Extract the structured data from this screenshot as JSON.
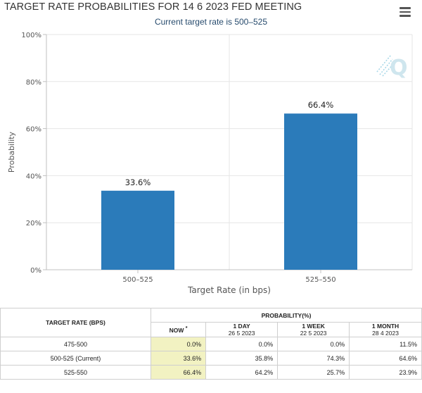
{
  "header": {
    "title": "TARGET RATE PROBABILITIES FOR 14 6 2023 FED MEETING",
    "subtitle": "Current target rate is 500–525"
  },
  "colors": {
    "bar": "#2b7bba",
    "grid": "#e6e6e6",
    "axis": "#c0c0c0"
  },
  "icons": {
    "menu": "hamburger-menu-icon",
    "watermark": "q-logo-icon"
  },
  "chart_data": {
    "type": "bar",
    "title": "TARGET RATE PROBABILITIES FOR 14 6 2023 FED MEETING",
    "subtitle": "Current target rate is 500–525",
    "categories": [
      "500–525",
      "525–550"
    ],
    "values": [
      33.6,
      66.4
    ],
    "data_labels": [
      "33.6%",
      "66.4%"
    ],
    "xlabel": "Target Rate (in bps)",
    "ylabel": "Probability",
    "ylim": [
      0,
      100
    ],
    "yticks": [
      0,
      20,
      40,
      60,
      80,
      100
    ],
    "ytick_labels": [
      "0%",
      "20%",
      "40%",
      "60%",
      "80%",
      "100%"
    ],
    "grid": true,
    "legend": "none"
  },
  "table": {
    "rate_header": "TARGET RATE (BPS)",
    "prob_header": "PROBABILITY(%)",
    "columns": [
      {
        "label": "NOW",
        "mark": "*",
        "date": ""
      },
      {
        "label": "1 DAY",
        "mark": "",
        "date": "26 5 2023"
      },
      {
        "label": "1 WEEK",
        "mark": "",
        "date": "22 5 2023"
      },
      {
        "label": "1 MONTH",
        "mark": "",
        "date": "28 4 2023"
      }
    ],
    "rows": [
      {
        "rate": "475-500",
        "values": [
          "0.0%",
          "0.0%",
          "0.0%",
          "11.5%"
        ]
      },
      {
        "rate": "500-525 (Current)",
        "values": [
          "33.6%",
          "35.8%",
          "74.3%",
          "64.6%"
        ]
      },
      {
        "rate": "525-550",
        "values": [
          "66.4%",
          "64.2%",
          "25.7%",
          "23.9%"
        ]
      }
    ]
  }
}
